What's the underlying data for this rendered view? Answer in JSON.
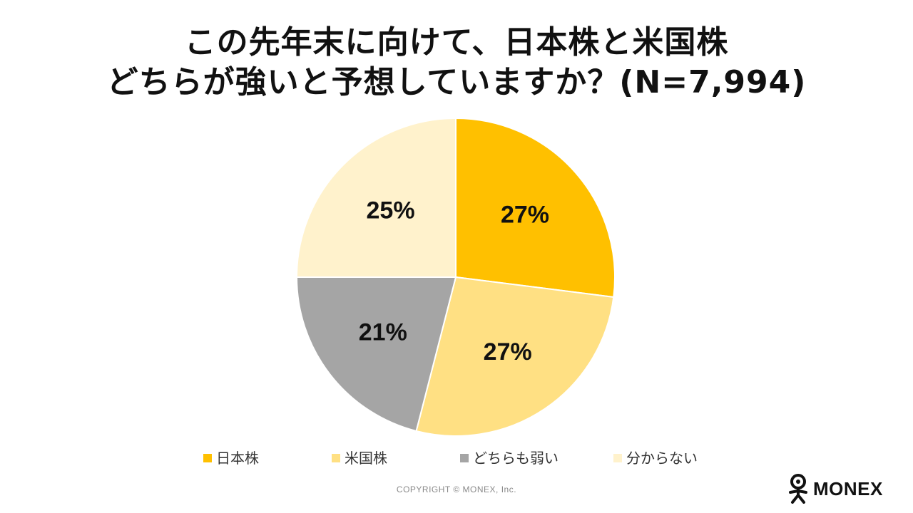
{
  "title": {
    "line1": "この先年末に向けて、日本株と米国株",
    "line2": "どちらが強いと予想していますか？(N=7,994)"
  },
  "chart_data": {
    "type": "pie",
    "categories": [
      "日本株",
      "米国株",
      "どちらも弱い",
      "分からない"
    ],
    "values": [
      27,
      27,
      21,
      25
    ],
    "data_labels": [
      "27%",
      "27%",
      "21%",
      "25%"
    ],
    "colors": [
      "#FFC000",
      "#FFE083",
      "#A5A5A5",
      "#FFF2CC"
    ],
    "legend_position": "bottom"
  },
  "legend": [
    {
      "label": "日本株",
      "color": "#FFC000"
    },
    {
      "label": "米国株",
      "color": "#FFE083"
    },
    {
      "label": "どちらも弱い",
      "color": "#A5A5A5"
    },
    {
      "label": "分からない",
      "color": "#FFF2CC"
    }
  ],
  "footer": {
    "copyright": "COPYRIGHT © MONEX, Inc.",
    "brand": "MONEX",
    "logo_icon": "monex-figure-icon"
  }
}
